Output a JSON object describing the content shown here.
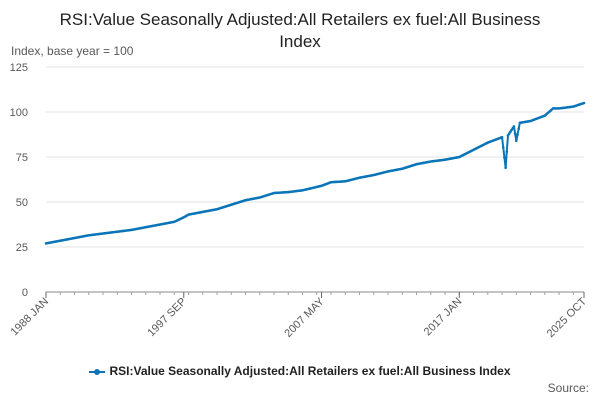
{
  "chart_data": {
    "type": "line",
    "title": "RSI:Value Seasonally Adjusted:All Retailers ex fuel:All Business Index",
    "ylabel": "Index, base year = 100",
    "xlabel": "",
    "ylim": [
      0,
      125
    ],
    "yticks": [
      "0",
      "25",
      "50",
      "75",
      "100",
      "125"
    ],
    "xticks": [
      "1988 JAN",
      "1997 SEP",
      "2007 MAY",
      "2017 JAN",
      "2025 OCT"
    ],
    "x_range": [
      "1988 JAN",
      "2025 OCT"
    ],
    "grid": "horizontal",
    "legend_position": "bottom",
    "source_label": "Source:",
    "color": "#0b75b8",
    "series": [
      {
        "name": "RSI:Value Seasonally Adjusted:All Retailers ex fuel:All Business Index",
        "anchors": [
          [
            "1988 JAN",
            27
          ],
          [
            "1989 JAN",
            28.5
          ],
          [
            "1990 JAN",
            30
          ],
          [
            "1991 JAN",
            31.5
          ],
          [
            "1992 JAN",
            32.5
          ],
          [
            "1993 JAN",
            33.5
          ],
          [
            "1994 JAN",
            34.5
          ],
          [
            "1995 JAN",
            36
          ],
          [
            "1996 JAN",
            37.5
          ],
          [
            "1997 JAN",
            39
          ],
          [
            "1997 SEP",
            41.5
          ],
          [
            "1998 JAN",
            43
          ],
          [
            "1999 JAN",
            44.5
          ],
          [
            "2000 JAN",
            46
          ],
          [
            "2001 JAN",
            48.5
          ],
          [
            "2002 JAN",
            51
          ],
          [
            "2003 JAN",
            52.5
          ],
          [
            "2004 JAN",
            55
          ],
          [
            "2005 JAN",
            55.5
          ],
          [
            "2006 JAN",
            56.5
          ],
          [
            "2007 MAY",
            59
          ],
          [
            "2008 JAN",
            61
          ],
          [
            "2009 JAN",
            61.5
          ],
          [
            "2010 JAN",
            63.5
          ],
          [
            "2011 JAN",
            65
          ],
          [
            "2012 JAN",
            67
          ],
          [
            "2013 JAN",
            68.5
          ],
          [
            "2014 JAN",
            71
          ],
          [
            "2015 JAN",
            72.5
          ],
          [
            "2016 JAN",
            73.5
          ],
          [
            "2017 JAN",
            75
          ],
          [
            "2018 JAN",
            79
          ],
          [
            "2019 JAN",
            83
          ],
          [
            "2020 JAN",
            86
          ],
          [
            "2020 APR",
            69
          ],
          [
            "2020 JUN",
            87
          ],
          [
            "2020 NOV",
            92
          ],
          [
            "2021 JAN",
            84
          ],
          [
            "2021 APR",
            94
          ],
          [
            "2022 JAN",
            95
          ],
          [
            "2023 JAN",
            98
          ],
          [
            "2023 AUG",
            102
          ],
          [
            "2024 JAN",
            102
          ],
          [
            "2025 JAN",
            103
          ],
          [
            "2025 OCT",
            105
          ]
        ]
      }
    ]
  }
}
